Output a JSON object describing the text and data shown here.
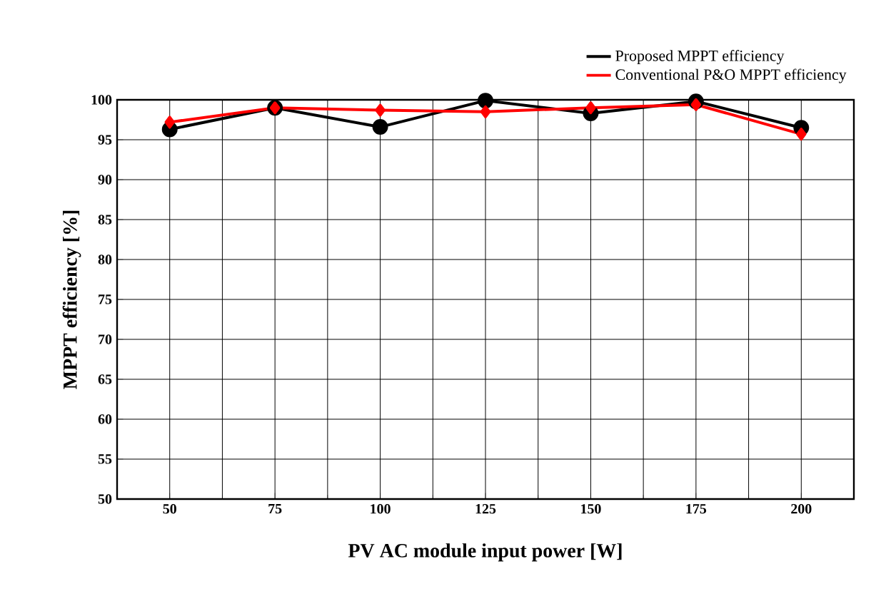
{
  "chart_data": {
    "type": "line",
    "xlabel": "PV AC module input power [W]",
    "ylabel": "MPPT efficiency [%]",
    "categories": [
      "50",
      "75",
      "100",
      "125",
      "150",
      "175",
      "200"
    ],
    "series": [
      {
        "name": "Proposed MPPT efficiency",
        "color": "#000000",
        "marker": "circle",
        "values": [
          96.3,
          99.0,
          96.6,
          99.9,
          98.3,
          99.8,
          96.5
        ]
      },
      {
        "name": "Conventional P&O MPPT efficiency",
        "color": "#ff0000",
        "marker": "diamond",
        "values": [
          97.2,
          99.0,
          98.7,
          98.5,
          99.0,
          99.4,
          95.7
        ]
      }
    ],
    "ylim": [
      50,
      100
    ],
    "yticks": [
      50,
      55,
      60,
      65,
      70,
      75,
      80,
      85,
      90,
      95,
      100
    ],
    "grid": true,
    "legend": "top right",
    "line_style": "solid"
  }
}
